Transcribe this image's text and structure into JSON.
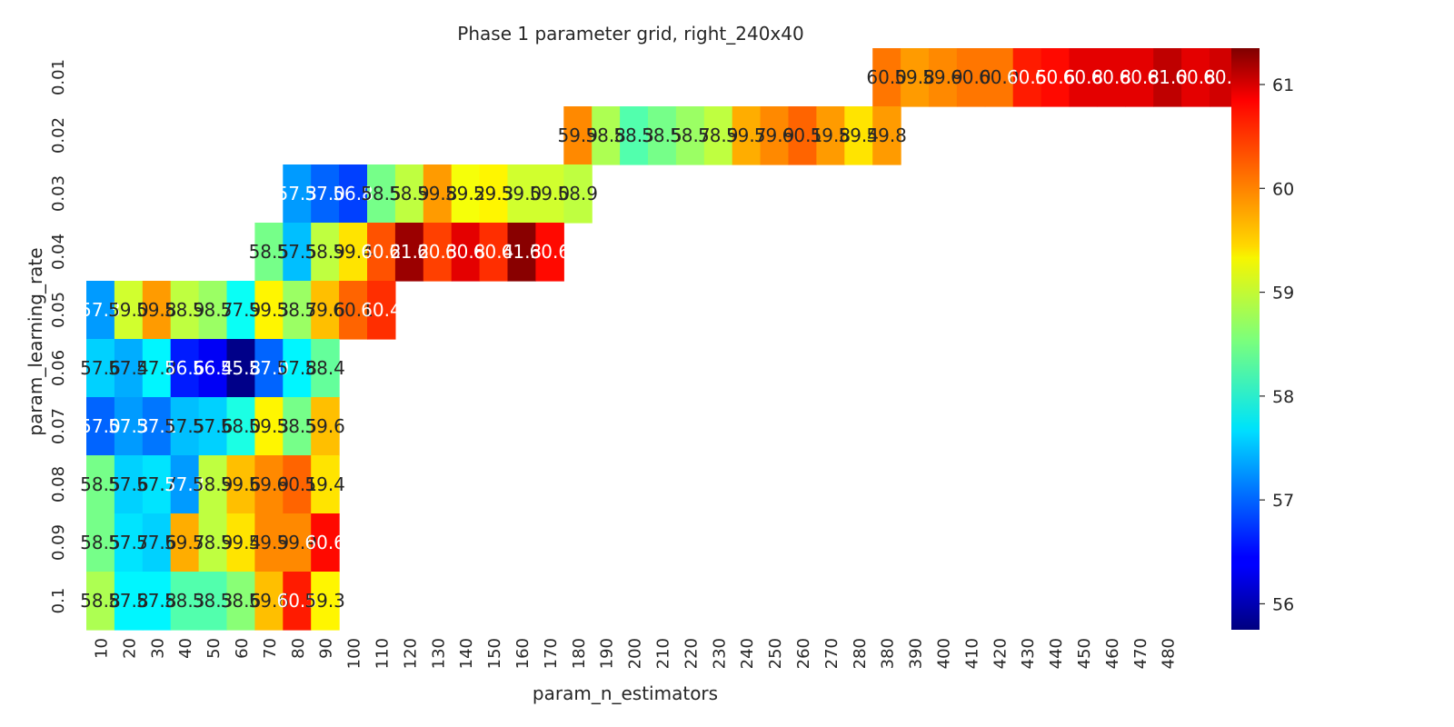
{
  "chart_data": {
    "type": "heatmap",
    "title": "Phase 1 parameter grid, right_240x40",
    "xlabel": "param_n_estimators",
    "ylabel": "param_learning_rate",
    "colormap": "jet",
    "colorbar": {
      "vmin": 55.75,
      "vmax": 61.35,
      "ticks": [
        "56",
        "57",
        "58",
        "59",
        "60",
        "61"
      ]
    },
    "x_categories": [
      "10",
      "20",
      "30",
      "40",
      "50",
      "60",
      "70",
      "80",
      "90",
      "100",
      "110",
      "120",
      "130",
      "140",
      "150",
      "160",
      "170",
      "180",
      "190",
      "200",
      "210",
      "220",
      "230",
      "240",
      "250",
      "260",
      "270",
      "280",
      "380",
      "390",
      "400",
      "410",
      "420",
      "430",
      "440",
      "450",
      "460",
      "470",
      "480"
    ],
    "y_categories": [
      "0.01",
      "0.02",
      "0.03",
      "0.04",
      "0.05",
      "0.06",
      "0.07",
      "0.08",
      "0.09",
      "0.1"
    ],
    "rows": [
      {
        "y": "0.01",
        "start": "380",
        "values": [
          60.0,
          59.8,
          59.9,
          60.0,
          60.0,
          60.5,
          60.6,
          60.8,
          60.8,
          60.8,
          61.0,
          60.8,
          60.9
        ]
      },
      {
        "y": "0.02",
        "start": "180",
        "values": [
          59.9,
          58.8,
          58.3,
          58.5,
          58.7,
          58.9,
          59.7,
          59.9,
          60.1,
          59.8,
          59.4,
          59.8
        ]
      },
      {
        "y": "0.03",
        "start": "80",
        "values": [
          57.3,
          57.0,
          56.8,
          58.5,
          58.9,
          59.8,
          59.2,
          59.3,
          59.0,
          59.0,
          58.9
        ]
      },
      {
        "y": "0.04",
        "start": "70",
        "values": [
          58.5,
          57.5,
          58.9,
          59.4,
          60.2,
          61.2,
          60.3,
          60.8,
          60.4,
          61.3,
          60.6
        ]
      },
      {
        "y": "0.05",
        "start": "10",
        "values": [
          57.3,
          59.0,
          59.8,
          58.9,
          58.7,
          57.9,
          59.3,
          58.7,
          59.6,
          60.1,
          60.4
        ]
      },
      {
        "y": "0.06",
        "start": "10",
        "values": [
          57.6,
          57.4,
          57.8,
          56.6,
          56.4,
          55.8,
          57.0,
          57.8,
          58.4
        ]
      },
      {
        "y": "0.07",
        "start": "10",
        "values": [
          57.0,
          57.3,
          57.1,
          57.5,
          57.6,
          58.0,
          59.3,
          58.5,
          59.6
        ]
      },
      {
        "y": "0.08",
        "start": "10",
        "values": [
          58.5,
          57.6,
          57.7,
          57.3,
          58.9,
          59.6,
          59.9,
          60.1,
          59.4
        ]
      },
      {
        "y": "0.09",
        "start": "10",
        "values": [
          58.5,
          57.7,
          57.6,
          59.7,
          58.9,
          59.4,
          59.9,
          59.9,
          60.6
        ]
      },
      {
        "y": "0.1",
        "start": "10",
        "values": [
          58.8,
          57.8,
          57.8,
          58.3,
          58.3,
          58.6,
          59.6,
          60.5,
          59.3
        ]
      }
    ]
  }
}
